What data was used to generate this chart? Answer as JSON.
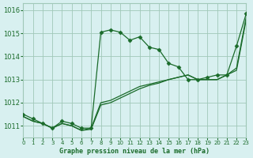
{
  "title": "Graphe pression niveau de la mer (hPa)",
  "bg_color": "#d8f0f0",
  "grid_color": "#a0c8b8",
  "line_color_dark": "#1a6b2a",
  "xlim": [
    0,
    23
  ],
  "ylim": [
    1010.5,
    1016.3
  ],
  "yticks": [
    1011,
    1012,
    1013,
    1014,
    1015,
    1016
  ],
  "xticks": [
    0,
    1,
    2,
    3,
    4,
    5,
    6,
    7,
    8,
    9,
    10,
    11,
    12,
    13,
    14,
    15,
    16,
    17,
    18,
    19,
    20,
    21,
    22,
    23
  ],
  "series1_x": [
    0,
    1,
    2,
    3,
    4,
    5,
    6,
    7,
    8,
    9,
    10,
    11,
    12,
    13,
    14,
    15,
    16,
    17,
    18,
    19,
    20,
    21,
    22,
    23
  ],
  "series1_y": [
    1011.4,
    1011.2,
    1011.1,
    1010.9,
    1011.1,
    1011.0,
    1010.8,
    1010.9,
    1012.0,
    1012.1,
    1012.3,
    1012.5,
    1012.7,
    1012.8,
    1012.9,
    1013.0,
    1013.1,
    1013.2,
    1013.0,
    1013.0,
    1013.0,
    1013.2,
    1013.5,
    1015.7
  ],
  "series2_x": [
    0,
    1,
    2,
    3,
    4,
    5,
    6,
    7,
    8,
    9,
    10,
    11,
    12,
    13,
    14,
    15,
    16,
    17,
    18,
    19,
    20,
    21,
    22,
    23
  ],
  "series2_y": [
    1011.5,
    1011.3,
    1011.1,
    1010.9,
    1011.2,
    1011.1,
    1010.9,
    1010.9,
    1015.05,
    1015.15,
    1015.05,
    1014.7,
    1014.85,
    1014.4,
    1014.3,
    1013.7,
    1013.55,
    1013.0,
    1013.0,
    1013.1,
    1013.2,
    1013.2,
    1014.45,
    1015.85
  ],
  "series3_x": [
    0,
    1,
    2,
    3,
    4,
    5,
    6,
    7,
    8,
    9,
    10,
    11,
    12,
    13,
    14,
    15,
    16,
    17,
    18,
    19,
    20,
    21,
    22,
    23
  ],
  "series3_y": [
    1011.4,
    1011.2,
    1011.1,
    1010.9,
    1011.1,
    1011.0,
    1010.8,
    1010.85,
    1011.9,
    1012.0,
    1012.2,
    1012.4,
    1012.6,
    1012.75,
    1012.85,
    1013.0,
    1013.1,
    1013.2,
    1013.0,
    1013.0,
    1013.0,
    1013.2,
    1013.4,
    1015.6
  ]
}
